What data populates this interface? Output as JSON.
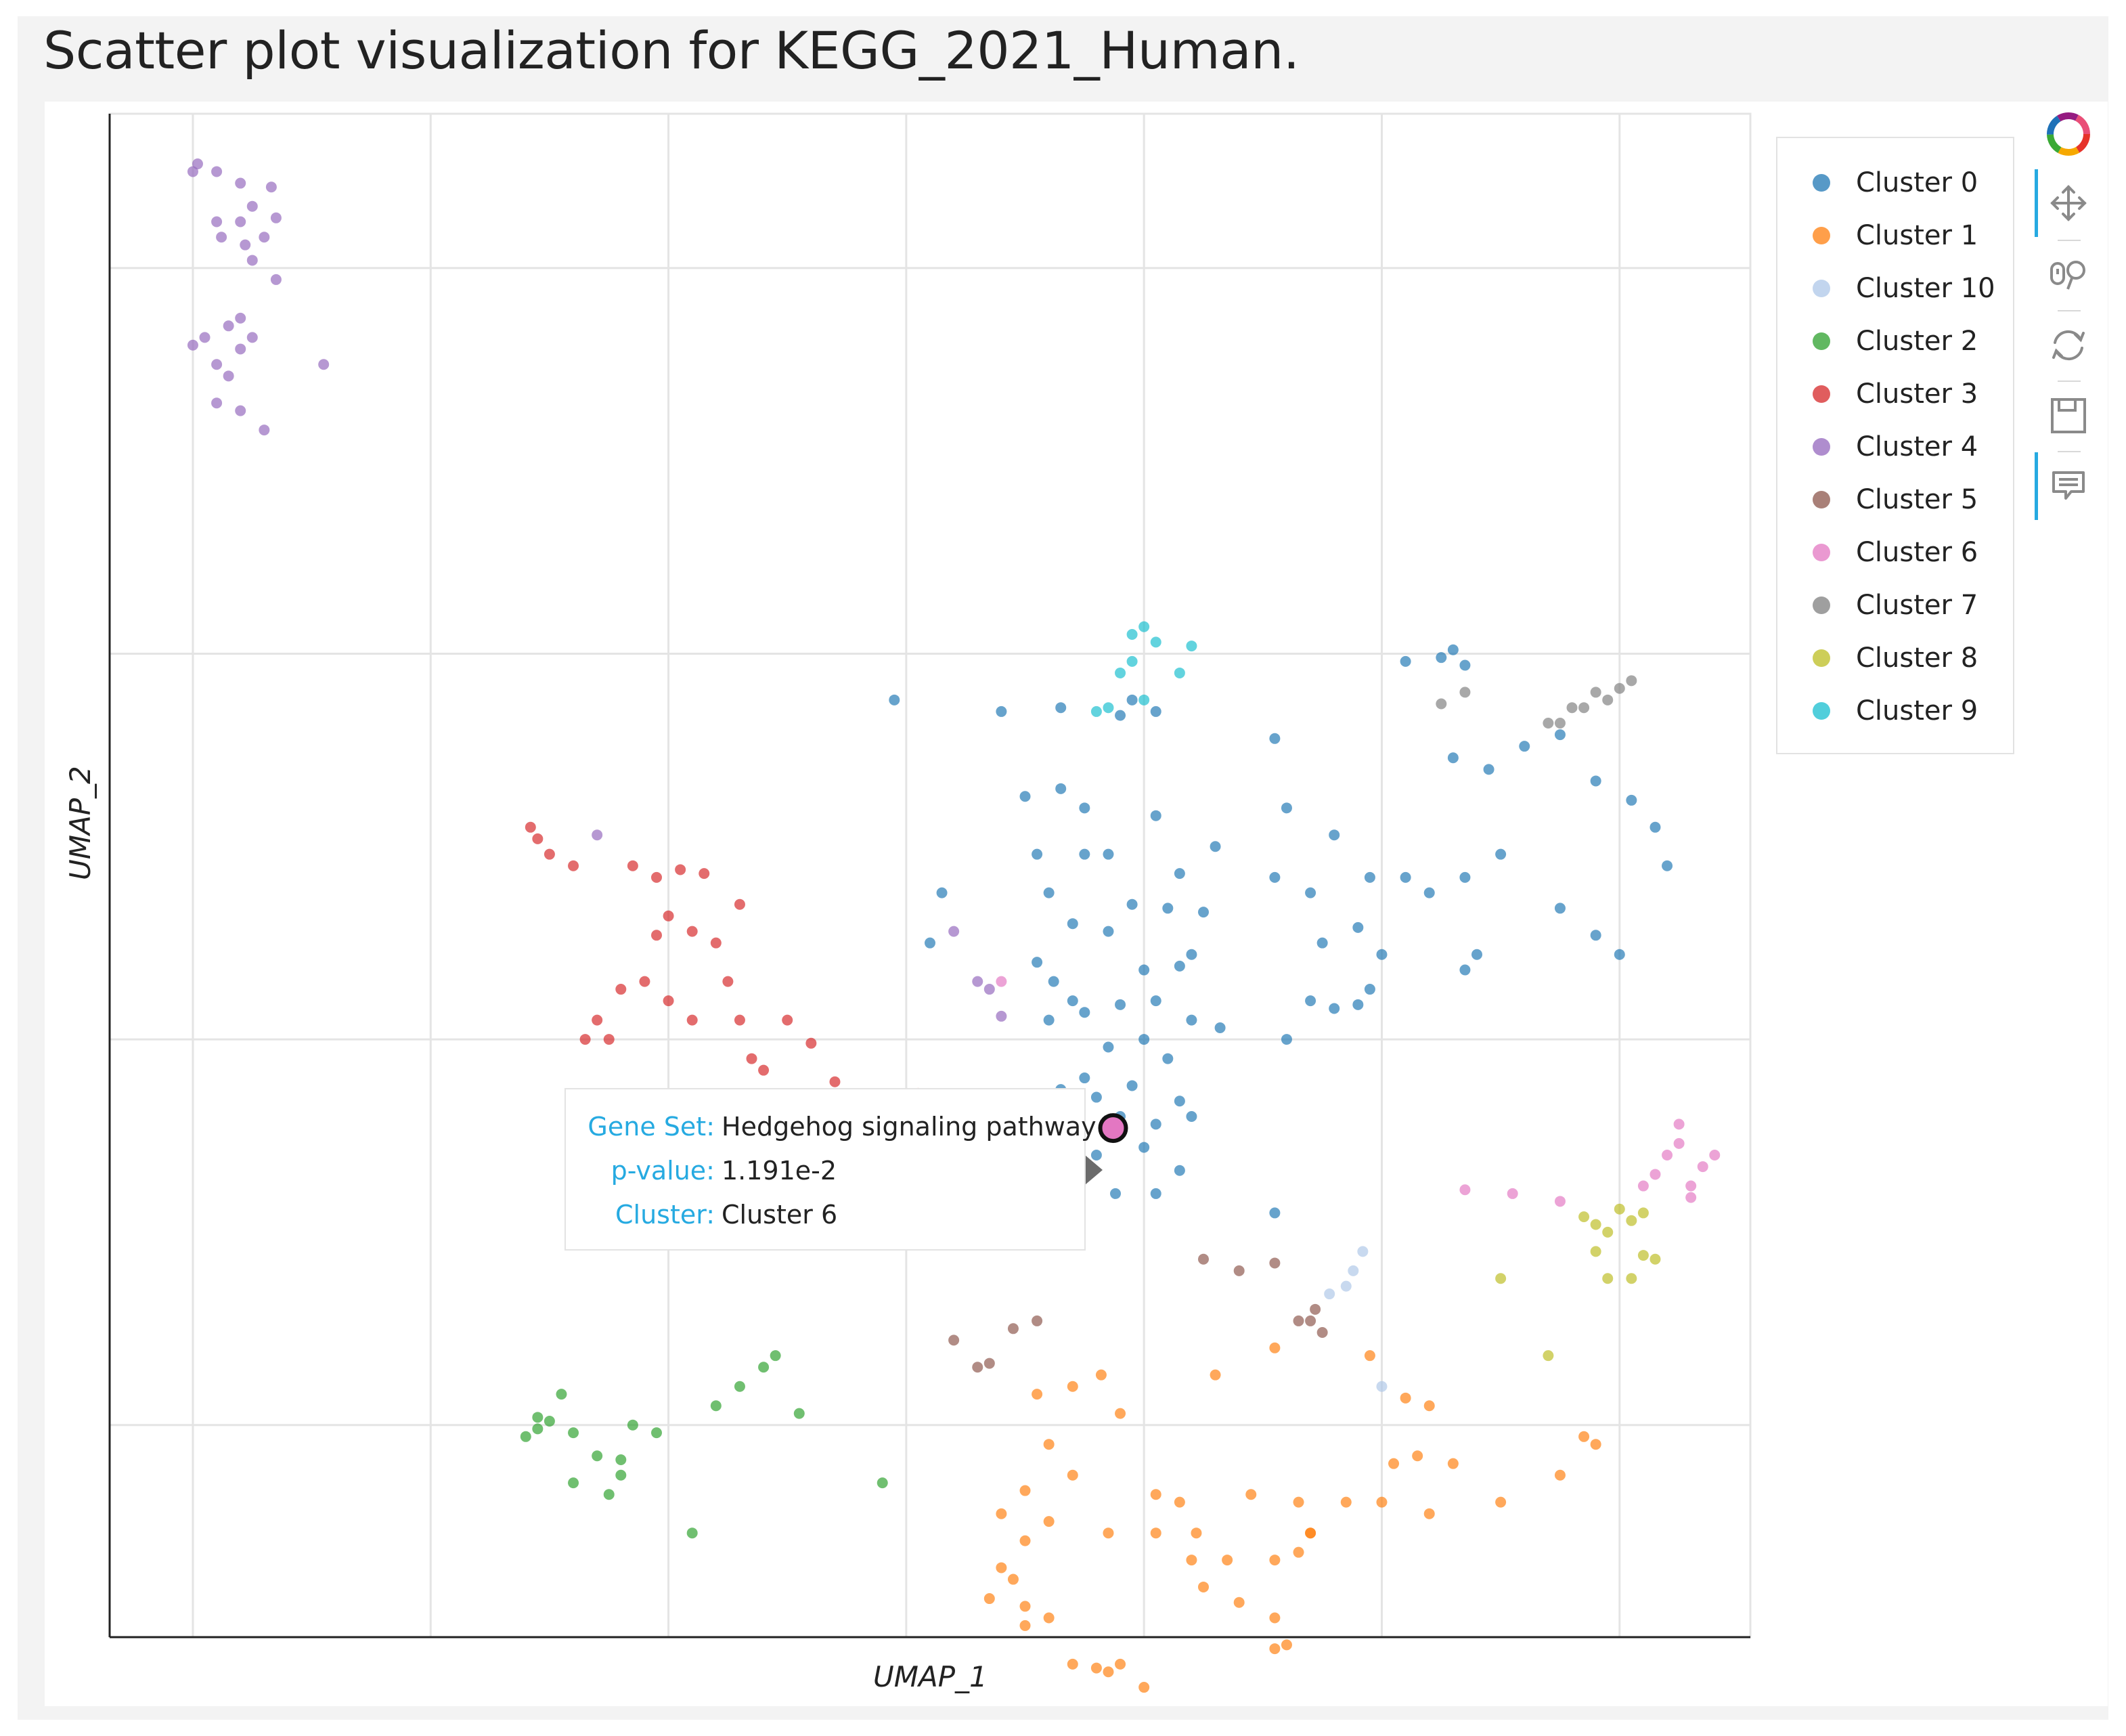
{
  "title": "Scatter plot visualization for KEGG_2021_Human.",
  "chart_data": {
    "type": "scatter",
    "xlabel": "UMAP_1",
    "ylabel": "UMAP_2",
    "xlim": [
      -0.35,
      6.55
    ],
    "ylim": [
      -1.55,
      2.4
    ],
    "grid": true,
    "legend_position": "right",
    "series": [
      {
        "name": "Cluster 0",
        "color": "#1f77b4",
        "points": [
          [
            3.4,
            0.85
          ],
          [
            3.65,
            0.86
          ],
          [
            3.95,
            0.88
          ],
          [
            4.05,
            0.85
          ],
          [
            3.9,
            0.84
          ],
          [
            3.5,
            0.63
          ],
          [
            3.65,
            0.65
          ],
          [
            3.75,
            0.6
          ],
          [
            3.85,
            0.48
          ],
          [
            4.05,
            0.58
          ],
          [
            4.15,
            0.43
          ],
          [
            4.3,
            0.5
          ],
          [
            3.55,
            0.48
          ],
          [
            3.75,
            0.48
          ],
          [
            3.6,
            0.38
          ],
          [
            3.95,
            0.35
          ],
          [
            4.1,
            0.34
          ],
          [
            4.25,
            0.33
          ],
          [
            3.7,
            0.3
          ],
          [
            3.85,
            0.28
          ],
          [
            4.0,
            0.18
          ],
          [
            4.15,
            0.19
          ],
          [
            4.2,
            0.22
          ],
          [
            3.55,
            0.2
          ],
          [
            3.62,
            0.15
          ],
          [
            3.7,
            0.1
          ],
          [
            3.6,
            0.05
          ],
          [
            3.75,
            0.07
          ],
          [
            3.9,
            0.09
          ],
          [
            4.05,
            0.1
          ],
          [
            4.2,
            0.05
          ],
          [
            4.32,
            0.03
          ],
          [
            3.85,
            -0.02
          ],
          [
            4.0,
            0.0
          ],
          [
            4.1,
            -0.05
          ],
          [
            3.75,
            -0.1
          ],
          [
            3.65,
            -0.13
          ],
          [
            3.8,
            -0.15
          ],
          [
            3.95,
            -0.12
          ],
          [
            4.15,
            -0.16
          ],
          [
            3.72,
            -0.2
          ],
          [
            3.9,
            -0.2
          ],
          [
            4.05,
            -0.22
          ],
          [
            4.2,
            -0.2
          ],
          [
            3.8,
            -0.3
          ],
          [
            4.0,
            -0.28
          ],
          [
            4.15,
            -0.34
          ],
          [
            3.88,
            -0.4
          ],
          [
            4.05,
            -0.4
          ],
          [
            4.6,
            0.6
          ],
          [
            4.8,
            0.53
          ],
          [
            4.95,
            0.42
          ],
          [
            5.1,
            0.42
          ],
          [
            4.55,
            0.42
          ],
          [
            4.7,
            0.38
          ],
          [
            5.2,
            0.38
          ],
          [
            5.35,
            0.42
          ],
          [
            5.5,
            0.48
          ],
          [
            4.75,
            0.25
          ],
          [
            4.9,
            0.29
          ],
          [
            5.0,
            0.22
          ],
          [
            4.7,
            0.1
          ],
          [
            4.8,
            0.08
          ],
          [
            4.9,
            0.09
          ],
          [
            4.95,
            0.13
          ],
          [
            4.6,
            0.0
          ],
          [
            5.3,
            0.73
          ],
          [
            5.45,
            0.7
          ],
          [
            5.6,
            0.76
          ],
          [
            5.75,
            0.79
          ],
          [
            5.9,
            0.67
          ],
          [
            6.05,
            0.62
          ],
          [
            6.15,
            0.55
          ],
          [
            6.2,
            0.45
          ],
          [
            5.4,
            0.22
          ],
          [
            5.35,
            0.18
          ],
          [
            5.75,
            0.34
          ],
          [
            5.9,
            0.27
          ],
          [
            6.0,
            0.22
          ],
          [
            2.95,
            0.88
          ],
          [
            3.15,
            0.38
          ],
          [
            3.1,
            0.25
          ],
          [
            4.55,
            0.78
          ],
          [
            4.55,
            -0.45
          ],
          [
            5.25,
            0.99
          ],
          [
            5.3,
            1.01
          ],
          [
            5.35,
            0.97
          ],
          [
            5.1,
            0.98
          ]
        ]
      },
      {
        "name": "Cluster 1",
        "color": "#ff7f0e",
        "points": [
          [
            3.82,
            -0.87
          ],
          [
            3.9,
            -0.97
          ],
          [
            4.3,
            -0.87
          ],
          [
            4.55,
            -0.8
          ],
          [
            4.95,
            -0.82
          ],
          [
            5.1,
            -0.93
          ],
          [
            5.2,
            -0.95
          ],
          [
            5.05,
            -1.1
          ],
          [
            5.15,
            -1.08
          ],
          [
            5.9,
            -1.05
          ],
          [
            5.85,
            -1.03
          ],
          [
            5.75,
            -1.13
          ],
          [
            3.55,
            -0.92
          ],
          [
            3.7,
            -0.9
          ],
          [
            3.6,
            -1.05
          ],
          [
            3.5,
            -1.17
          ],
          [
            3.4,
            -1.23
          ],
          [
            3.5,
            -1.3
          ],
          [
            3.4,
            -1.37
          ],
          [
            3.35,
            -1.45
          ],
          [
            3.5,
            -1.47
          ],
          [
            3.5,
            -1.52
          ],
          [
            3.6,
            -1.5
          ],
          [
            3.7,
            -1.62
          ],
          [
            3.9,
            -1.62
          ],
          [
            4.0,
            -1.68
          ],
          [
            3.8,
            -1.63
          ],
          [
            3.85,
            -1.64
          ],
          [
            3.45,
            -1.4
          ],
          [
            3.6,
            -1.25
          ],
          [
            3.7,
            -1.13
          ],
          [
            3.85,
            -1.28
          ],
          [
            4.05,
            -1.28
          ],
          [
            4.2,
            -1.35
          ],
          [
            4.35,
            -1.35
          ],
          [
            4.55,
            -1.35
          ],
          [
            4.7,
            -1.28
          ],
          [
            4.65,
            -1.33
          ],
          [
            4.4,
            -1.46
          ],
          [
            4.55,
            -1.5
          ],
          [
            4.6,
            -1.57
          ],
          [
            4.25,
            -1.42
          ],
          [
            4.05,
            -1.18
          ],
          [
            4.15,
            -1.2
          ],
          [
            4.22,
            -1.28
          ],
          [
            4.55,
            -1.58
          ],
          [
            4.85,
            -1.2
          ],
          [
            5.0,
            -1.2
          ],
          [
            5.3,
            -1.1
          ],
          [
            5.5,
            -1.2
          ],
          [
            4.45,
            -1.18
          ],
          [
            4.65,
            -1.2
          ],
          [
            4.7,
            -1.28
          ],
          [
            5.2,
            -1.23
          ]
        ]
      },
      {
        "name": "Cluster 10",
        "color": "#aec7e8",
        "points": [
          [
            4.78,
            -0.66
          ],
          [
            4.85,
            -0.64
          ],
          [
            4.88,
            -0.6
          ],
          [
            4.92,
            -0.55
          ],
          [
            5.0,
            -0.9
          ]
        ]
      },
      {
        "name": "Cluster 2",
        "color": "#2ca02c",
        "points": [
          [
            1.4,
            -1.03
          ],
          [
            1.45,
            -1.01
          ],
          [
            1.5,
            -0.99
          ],
          [
            1.55,
            -0.92
          ],
          [
            1.6,
            -1.02
          ],
          [
            1.7,
            -1.08
          ],
          [
            1.8,
            -1.13
          ],
          [
            1.85,
            -1.0
          ],
          [
            1.95,
            -1.02
          ],
          [
            1.6,
            -1.15
          ],
          [
            1.75,
            -1.18
          ],
          [
            2.2,
            -0.95
          ],
          [
            2.3,
            -0.9
          ],
          [
            2.4,
            -0.85
          ],
          [
            2.45,
            -0.82
          ],
          [
            2.55,
            -0.97
          ],
          [
            2.9,
            -1.15
          ],
          [
            2.1,
            -1.28
          ],
          [
            1.45,
            -0.98
          ],
          [
            1.8,
            -1.09
          ]
        ]
      },
      {
        "name": "Cluster 3",
        "color": "#d62728",
        "points": [
          [
            1.42,
            0.55
          ],
          [
            1.45,
            0.52
          ],
          [
            1.5,
            0.48
          ],
          [
            1.6,
            0.45
          ],
          [
            1.85,
            0.45
          ],
          [
            1.95,
            0.42
          ],
          [
            2.05,
            0.44
          ],
          [
            2.15,
            0.43
          ],
          [
            2.0,
            0.32
          ],
          [
            2.1,
            0.28
          ],
          [
            2.3,
            0.35
          ],
          [
            1.95,
            0.27
          ],
          [
            1.9,
            0.15
          ],
          [
            2.2,
            0.25
          ],
          [
            2.0,
            0.1
          ],
          [
            2.1,
            0.05
          ],
          [
            2.3,
            0.05
          ],
          [
            2.25,
            0.15
          ],
          [
            2.5,
            0.05
          ],
          [
            2.6,
            -0.01
          ],
          [
            1.8,
            0.13
          ],
          [
            1.7,
            0.05
          ],
          [
            1.75,
            0.0
          ],
          [
            2.35,
            -0.05
          ],
          [
            1.65,
            -0.0
          ],
          [
            2.0,
            -0.19
          ],
          [
            2.4,
            -0.08
          ],
          [
            2.6,
            -0.2
          ],
          [
            2.7,
            -0.11
          ],
          [
            2.85,
            -0.2
          ],
          [
            2.9,
            -0.18
          ],
          [
            2.95,
            -0.21
          ],
          [
            3.05,
            -0.14
          ],
          [
            2.2,
            -0.27
          ]
        ]
      },
      {
        "name": "Cluster 4",
        "color": "#9467bd",
        "points": [
          [
            0.0,
            2.25
          ],
          [
            0.1,
            2.25
          ],
          [
            0.2,
            2.22
          ],
          [
            0.1,
            2.12
          ],
          [
            0.2,
            2.12
          ],
          [
            0.25,
            2.16
          ],
          [
            0.12,
            2.08
          ],
          [
            0.22,
            2.06
          ],
          [
            0.25,
            2.02
          ],
          [
            0.3,
            2.08
          ],
          [
            0.35,
            2.13
          ],
          [
            0.35,
            1.97
          ],
          [
            0.15,
            1.85
          ],
          [
            0.2,
            1.87
          ],
          [
            0.05,
            1.82
          ],
          [
            0.0,
            1.8
          ],
          [
            0.1,
            1.75
          ],
          [
            0.15,
            1.72
          ],
          [
            0.2,
            1.79
          ],
          [
            0.25,
            1.82
          ],
          [
            0.1,
            1.65
          ],
          [
            0.2,
            1.63
          ],
          [
            0.55,
            1.75
          ],
          [
            0.3,
            1.58
          ],
          [
            0.02,
            2.27
          ],
          [
            0.33,
            2.21
          ],
          [
            1.7,
            0.53
          ],
          [
            3.3,
            0.15
          ],
          [
            3.35,
            0.13
          ],
          [
            3.4,
            0.06
          ],
          [
            3.2,
            0.28
          ]
        ]
      },
      {
        "name": "Cluster 5",
        "color": "#8c564b",
        "points": [
          [
            4.25,
            -0.57
          ],
          [
            4.4,
            -0.6
          ],
          [
            4.55,
            -0.58
          ],
          [
            4.65,
            -0.73
          ],
          [
            4.7,
            -0.73
          ],
          [
            4.75,
            -0.76
          ],
          [
            4.72,
            -0.7
          ],
          [
            3.2,
            -0.78
          ],
          [
            3.3,
            -0.85
          ],
          [
            3.35,
            -0.84
          ],
          [
            3.45,
            -0.75
          ],
          [
            3.55,
            -0.73
          ]
        ]
      },
      {
        "name": "Cluster 6",
        "color": "#e377c2",
        "points": [
          [
            3.72,
            -0.38
          ],
          [
            5.35,
            -0.39
          ],
          [
            5.55,
            -0.4
          ],
          [
            5.75,
            -0.42
          ],
          [
            6.1,
            -0.38
          ],
          [
            6.15,
            -0.35
          ],
          [
            6.2,
            -0.3
          ],
          [
            6.25,
            -0.27
          ],
          [
            6.3,
            -0.38
          ],
          [
            6.35,
            -0.33
          ],
          [
            6.4,
            -0.3
          ],
          [
            3.45,
            -0.33
          ],
          [
            3.4,
            0.15
          ],
          [
            6.25,
            -0.22
          ],
          [
            6.3,
            -0.41
          ]
        ]
      },
      {
        "name": "Cluster 7",
        "color": "#7f7f7f",
        "points": [
          [
            5.75,
            0.82
          ],
          [
            5.8,
            0.86
          ],
          [
            5.85,
            0.86
          ],
          [
            5.9,
            0.9
          ],
          [
            6.0,
            0.91
          ],
          [
            6.05,
            0.93
          ],
          [
            5.95,
            0.88
          ],
          [
            5.25,
            0.87
          ],
          [
            5.35,
            0.9
          ],
          [
            5.7,
            0.82
          ]
        ]
      },
      {
        "name": "Cluster 8",
        "color": "#bcbd22",
        "points": [
          [
            5.85,
            -0.46
          ],
          [
            5.9,
            -0.48
          ],
          [
            5.95,
            -0.5
          ],
          [
            6.0,
            -0.44
          ],
          [
            6.05,
            -0.47
          ],
          [
            5.9,
            -0.55
          ],
          [
            6.1,
            -0.45
          ],
          [
            5.95,
            -0.62
          ],
          [
            6.05,
            -0.62
          ],
          [
            6.15,
            -0.57
          ],
          [
            5.5,
            -0.62
          ],
          [
            5.7,
            -0.82
          ],
          [
            6.1,
            -0.56
          ]
        ]
      },
      {
        "name": "Cluster 9",
        "color": "#17becf",
        "points": [
          [
            3.95,
            1.05
          ],
          [
            4.0,
            1.07
          ],
          [
            3.95,
            0.98
          ],
          [
            4.05,
            1.03
          ],
          [
            3.9,
            0.95
          ],
          [
            4.15,
            0.95
          ],
          [
            4.2,
            1.02
          ],
          [
            3.85,
            0.86
          ],
          [
            3.8,
            0.85
          ],
          [
            4.0,
            0.88
          ]
        ]
      }
    ],
    "highlighted_point": {
      "series": "Cluster 6",
      "x": 3.87,
      "y": -0.23
    }
  },
  "tooltip": {
    "rows": [
      {
        "key": "Gene Set:",
        "value": "Hedgehog signaling pathway"
      },
      {
        "key": "p-value:",
        "value": "1.191e-2"
      },
      {
        "key": "Cluster:",
        "value": "Cluster 6"
      }
    ]
  },
  "toolbar": {
    "tools": [
      {
        "name": "bokeh-logo-icon",
        "active": false
      },
      {
        "name": "pan-icon",
        "active": true
      },
      {
        "name": "wheel-zoom-icon",
        "active": false
      },
      {
        "name": "reset-icon",
        "active": false
      },
      {
        "name": "save-icon",
        "active": false
      },
      {
        "name": "hover-icon",
        "active": true
      }
    ]
  }
}
